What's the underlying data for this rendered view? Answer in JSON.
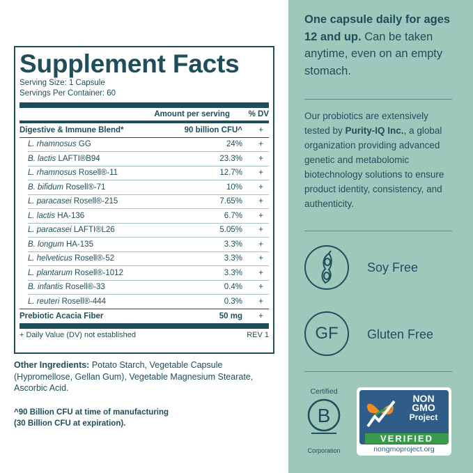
{
  "facts": {
    "title": "Supplement Facts",
    "serving_size": "Serving Size: 1 Capsule",
    "servings_per_container": "Servings Per Container: 60",
    "col_amount": "Amount per serving",
    "col_dv": "% DV",
    "rows": [
      {
        "name": "Digestive & Immune Blend*",
        "amount": "90 billion CFU^",
        "dv": "+"
      },
      {
        "species": "L. rhamnosus",
        "strain": " GG",
        "amount": "24%",
        "dv": "+"
      },
      {
        "species": "B. lactis",
        "strain": " LAFTI®B94",
        "amount": "23.3%",
        "dv": "+"
      },
      {
        "species": "L. rhamnosus",
        "strain": " Rosell®-11",
        "amount": "12.7%",
        "dv": "+"
      },
      {
        "species": "B. bifidum",
        "strain": " Rosell®-71",
        "amount": "10%",
        "dv": "+"
      },
      {
        "species": "L. paracasei",
        "strain": " Rosell®-215",
        "amount": "7.65%",
        "dv": "+"
      },
      {
        "species": "L. lactis",
        "strain": " HA-136",
        "amount": "6.7%",
        "dv": "+"
      },
      {
        "species": "L. paracasei",
        "strain": " LAFTI®L26",
        "amount": "5.05%",
        "dv": "+"
      },
      {
        "species": "B. longum",
        "strain": " HA-135",
        "amount": "3.3%",
        "dv": "+"
      },
      {
        "species": "L. helveticus",
        "strain": " Rosell®-52",
        "amount": "3.3%",
        "dv": "+"
      },
      {
        "species": "L. plantarum",
        "strain": " Rosell®-1012",
        "amount": "3.3%",
        "dv": "+"
      },
      {
        "species": "B. infantis",
        "strain": " Rosell®-33",
        "amount": "0.4%",
        "dv": "+"
      },
      {
        "species": "L. reuteri",
        "strain": " Rosell®-444",
        "amount": "0.3%",
        "dv": "+"
      },
      {
        "name": "Prebiotic Acacia Fiber",
        "amount": "50 mg",
        "dv": "+"
      }
    ],
    "footnote": "+ Daily Value (DV) not established",
    "rev": "REV 1"
  },
  "other_ingredients": {
    "label": "Other Ingredients:",
    "text": " Potato Starch, Vegetable Capsule (Hypromellose, Gellan Gum), Vegetable Magnesium Stearate, Ascorbic Acid."
  },
  "cfu_note": {
    "line1": "^90 Billion CFU at time of manufacturing",
    "line2": "(30 Billion CFU at expiration)."
  },
  "right": {
    "intro_bold": "One capsule daily for ages 12 and up.",
    "intro_rest": " Can be taken anytime, even on an empty stomach.",
    "testing_pre": "Our probiotics are extensively tested by ",
    "testing_bold": "Purity-IQ Inc.",
    "testing_post": ", a global organization providing advanced genetic and metabolomic biotechnology solutions to ensure product identity, consistency, and authenticity.",
    "soy_label": "Soy Free",
    "soy_icon": "soybean-pod-icon",
    "gf_icon_text": "GF",
    "gf_label": "Gluten Free",
    "bcorp_certified": "Certified",
    "bcorp_letter": "B",
    "bcorp_corp": "Corporation",
    "ngmo_title_1": "NON",
    "ngmo_title_2": "GMO",
    "ngmo_sub_1": "Project",
    "ngmo_verified": "VERIFIED",
    "ngmo_url": "nongmoproject.org"
  },
  "colors": {
    "ink": "#1f4e5a",
    "panel_right": "#9fc8bd",
    "ngmo_blue": "#2f5d87",
    "ngmo_green": "#3a9c4b"
  }
}
